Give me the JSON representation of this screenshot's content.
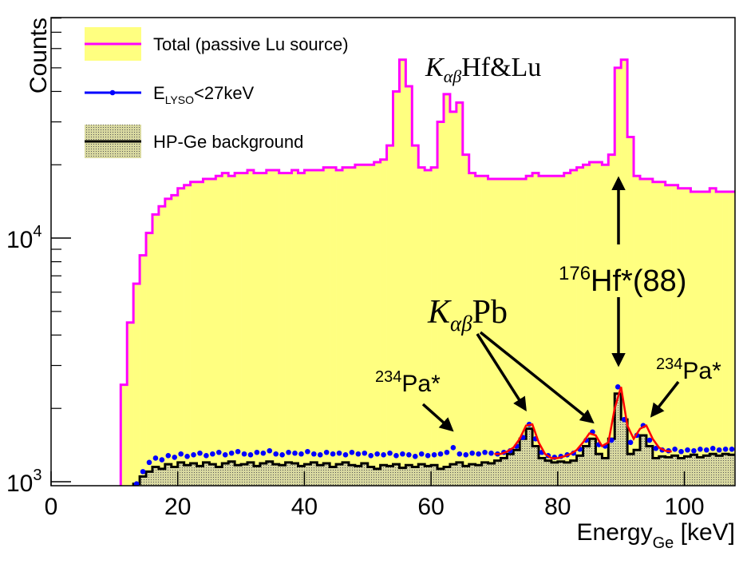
{
  "chart_data": {
    "type": "histogram",
    "ylabel": "Counts",
    "xlabel": "Energy",
    "xlabel_sub": "Ge",
    "xlabel_tail": " [keV]",
    "xlim": [
      0,
      108
    ],
    "ylim": [
      963,
      80400
    ],
    "log_y": true,
    "xticks": [
      0,
      20,
      40,
      60,
      80,
      100
    ],
    "yticks": [
      {
        "value": 1000,
        "label": "10",
        "sup": "3"
      },
      {
        "value": 10000,
        "label": "10",
        "sup": "4"
      }
    ],
    "yminorticks": [
      2000,
      3000,
      4000,
      5000,
      6000,
      7000,
      8000,
      9000,
      20000,
      30000,
      40000,
      50000,
      60000,
      70000,
      80000
    ],
    "legend": "upper left",
    "bins": [
      0,
      1,
      2,
      3,
      4,
      5,
      6,
      7,
      8,
      9,
      10,
      11,
      12,
      13,
      14,
      15,
      16,
      17,
      18,
      19,
      20,
      21,
      22,
      23,
      24,
      25,
      26,
      27,
      28,
      29,
      30,
      31,
      32,
      33,
      34,
      35,
      36,
      37,
      38,
      39,
      40,
      41,
      42,
      43,
      44,
      45,
      46,
      47,
      48,
      49,
      50,
      51,
      52,
      53,
      54,
      55,
      56,
      57,
      58,
      59,
      60,
      61,
      62,
      63,
      64,
      65,
      66,
      67,
      68,
      69,
      70,
      71,
      72,
      73,
      74,
      75,
      76,
      77,
      78,
      79,
      80,
      81,
      82,
      83,
      84,
      85,
      86,
      87,
      88,
      89,
      90,
      91,
      92,
      93,
      94,
      95,
      96,
      97,
      98,
      99,
      100,
      101,
      102,
      103,
      104,
      105,
      106,
      107,
      108
    ],
    "series": [
      {
        "name": "Total (passive Lu source)",
        "color": "#ff00ff",
        "fill": "#ffff80",
        "style": "hist",
        "values": [
          0,
          0,
          0,
          0,
          0,
          0,
          0,
          0,
          0,
          0,
          0,
          2500,
          4500,
          6500,
          8500,
          10500,
          12500,
          13500,
          14500,
          15000,
          16000,
          16500,
          17000,
          17000,
          17500,
          17500,
          18000,
          18500,
          18000,
          18500,
          18500,
          19000,
          18500,
          18500,
          19000,
          19000,
          18500,
          18500,
          19000,
          18500,
          19000,
          19000,
          19000,
          19500,
          19500,
          19000,
          19500,
          19500,
          20000,
          20000,
          20000,
          20500,
          21000,
          24000,
          40000,
          54000,
          42000,
          24000,
          19500,
          19000,
          19500,
          30000,
          39000,
          33000,
          36000,
          22000,
          18500,
          18000,
          18000,
          17500,
          17500,
          17500,
          17500,
          17500,
          17500,
          18000,
          18500,
          18000,
          18000,
          18000,
          18000,
          18500,
          19000,
          19500,
          20000,
          20500,
          20500,
          20000,
          22000,
          50000,
          54000,
          26000,
          18000,
          17500,
          17500,
          17000,
          17000,
          16500,
          16500,
          16000,
          16000,
          15500,
          15500,
          15500,
          16000,
          15500,
          15500,
          15500
        ]
      },
      {
        "name": "E",
        "name_sub": "LYSO",
        "name_tail": "<27keV",
        "color": "#0000ff",
        "style": "markers",
        "values": [
          null,
          null,
          null,
          null,
          null,
          null,
          null,
          null,
          null,
          null,
          null,
          null,
          null,
          980,
          1100,
          1200,
          1250,
          1230,
          1280,
          1260,
          1300,
          1270,
          1290,
          1310,
          1280,
          1300,
          1320,
          1290,
          1310,
          1330,
          1300,
          1290,
          1320,
          1310,
          1340,
          1300,
          1290,
          1320,
          1310,
          1300,
          1330,
          1300,
          1290,
          1320,
          1300,
          1310,
          1290,
          1320,
          1300,
          1310,
          1280,
          1300,
          1290,
          1310,
          1280,
          1300,
          1290,
          1270,
          1300,
          1280,
          1290,
          1300,
          1320,
          1380,
          1300,
          1290,
          1310,
          1300,
          1320,
          1310,
          1300,
          1320,
          1340,
          1400,
          1520,
          1720,
          1500,
          1320,
          1280,
          1260,
          1270,
          1290,
          1310,
          1360,
          1480,
          1600,
          1420,
          1400,
          1480,
          2450,
          1800,
          1450,
          1550,
          1700,
          1480,
          1370,
          1350,
          1340,
          1360,
          1330,
          1350,
          1340,
          1360,
          1350,
          1370,
          1350,
          1360,
          1360
        ]
      },
      {
        "name": "HP-Ge background",
        "color": "#000000",
        "fill": "hatch",
        "style": "hist",
        "values": [
          0,
          0,
          0,
          0,
          0,
          0,
          0,
          0,
          0,
          0,
          0,
          0,
          0,
          980,
          1050,
          1100,
          1150,
          1130,
          1180,
          1150,
          1200,
          1170,
          1190,
          1160,
          1200,
          1180,
          1150,
          1190,
          1210,
          1170,
          1180,
          1200,
          1160,
          1190,
          1210,
          1180,
          1170,
          1200,
          1190,
          1160,
          1180,
          1200,
          1170,
          1190,
          1150,
          1180,
          1200,
          1170,
          1160,
          1190,
          1150,
          1130,
          1170,
          1160,
          1180,
          1140,
          1170,
          1150,
          1180,
          1160,
          1170,
          1130,
          1150,
          1180,
          1200,
          1160,
          1180,
          1170,
          1200,
          1190,
          1220,
          1250,
          1300,
          1350,
          1500,
          1650,
          1400,
          1250,
          1220,
          1200,
          1210,
          1200,
          1220,
          1280,
          1400,
          1500,
          1300,
          1250,
          1500,
          2300,
          1800,
          1300,
          1350,
          1550,
          1400,
          1250,
          1270,
          1260,
          1280,
          1250,
          1270,
          1290,
          1260,
          1280,
          1300,
          1280,
          1300,
          1290
        ]
      }
    ],
    "fit": {
      "color": "#ff0000",
      "x": [
        70,
        71,
        72,
        73,
        74,
        75,
        76,
        77,
        78,
        79,
        80,
        81,
        82,
        83,
        84,
        85,
        86,
        87,
        88,
        89,
        90,
        91,
        92,
        93,
        94,
        95,
        96,
        97,
        98
      ],
      "values": [
        1300,
        1300,
        1330,
        1380,
        1500,
        1700,
        1720,
        1450,
        1300,
        1250,
        1250,
        1270,
        1300,
        1350,
        1450,
        1580,
        1550,
        1400,
        1450,
        2000,
        2450,
        1700,
        1500,
        1650,
        1700,
        1500,
        1380,
        1340,
        1330
      ]
    },
    "annotations": [
      {
        "text": "K",
        "sub": "αβ",
        "tail": "Hf&Lu"
      },
      {
        "text": "K",
        "sub": "αβ",
        "tail": "Pb"
      },
      {
        "sup": "234",
        "text": "Pa*"
      },
      {
        "sup": "176",
        "text": "Hf*(88)",
        "color": "#808080"
      },
      {
        "sup": "234",
        "text": "Pa*"
      }
    ]
  }
}
